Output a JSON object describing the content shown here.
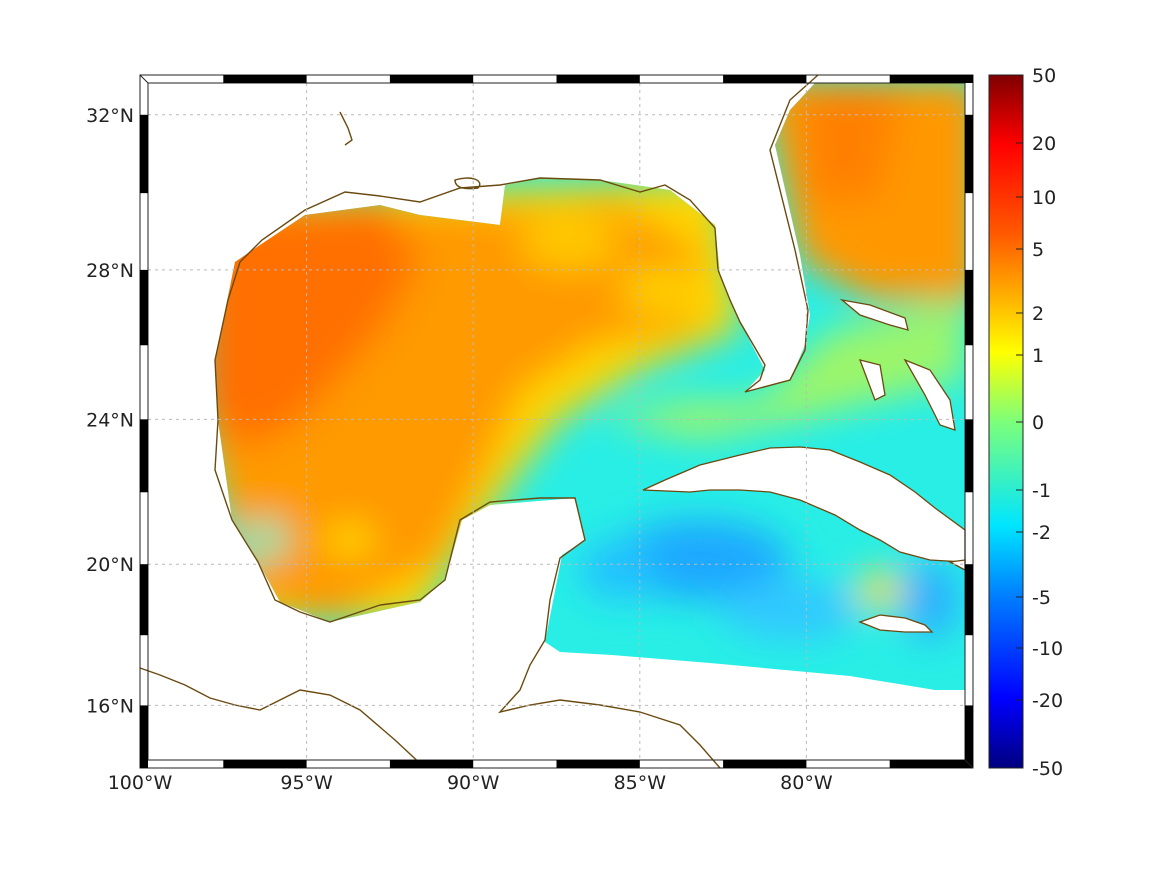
{
  "map": {
    "lon_range": [
      -100,
      -75
    ],
    "lat_range": [
      14.2,
      33
    ],
    "lon_ticks": [
      {
        "value": -100,
        "label": "100°W"
      },
      {
        "value": -95,
        "label": "95°W"
      },
      {
        "value": -90,
        "label": "90°W"
      },
      {
        "value": -85,
        "label": "85°W"
      },
      {
        "value": -80,
        "label": "80°W"
      }
    ],
    "lat_ticks": [
      {
        "value": 32,
        "label": "32°N"
      },
      {
        "value": 28,
        "label": "28°N"
      },
      {
        "value": 24,
        "label": "24°N"
      },
      {
        "value": 20,
        "label": "20°N"
      },
      {
        "value": 16,
        "label": "16°N"
      }
    ],
    "coast_color": "#6b4a10",
    "grid": true
  },
  "colorbar": {
    "colormap": "jet",
    "ticks": [
      "50",
      "20",
      "10",
      "5",
      "2",
      "1",
      "0",
      "-1",
      "-2",
      "-5",
      "-10",
      "-20",
      "-50"
    ]
  }
}
